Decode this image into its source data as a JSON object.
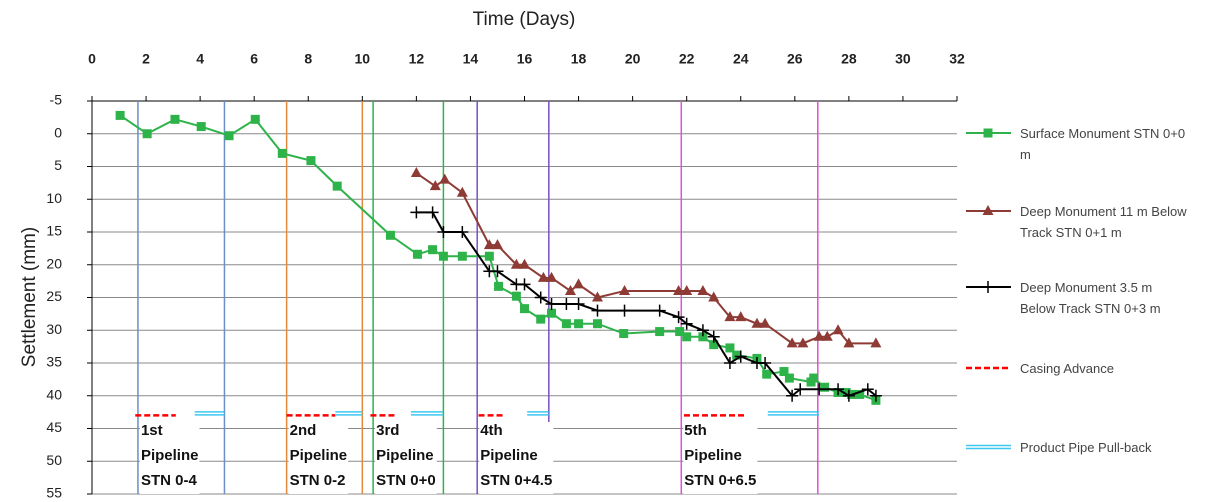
{
  "chart_data": {
    "type": "line",
    "title": "Time (Days)",
    "y_label": "Settlement (mm)",
    "xlim": [
      0,
      32
    ],
    "xticks": [
      0,
      2,
      4,
      6,
      8,
      10,
      12,
      14,
      16,
      18,
      20,
      22,
      24,
      26,
      28,
      30,
      32
    ],
    "ylim": [
      -5,
      55
    ],
    "y_inverted": true,
    "yticks": [
      -5,
      0,
      5,
      10,
      15,
      20,
      25,
      30,
      35,
      40,
      45,
      50,
      55
    ],
    "grid": true,
    "series": [
      {
        "name": "Surface Monument STN 0+0 m",
        "color": "#2db34a",
        "marker": "square",
        "x": [
          1.04,
          2.04,
          3.07,
          4.04,
          5.07,
          6.04,
          7.04,
          8.1,
          9.07,
          11.04,
          12.04,
          12.6,
          13.0,
          13.7,
          14.7,
          15.04,
          15.7,
          16.0,
          16.6,
          17.0,
          17.55,
          18.0,
          18.7,
          19.67,
          21.0,
          21.74,
          22.0,
          22.6,
          23.0,
          23.6,
          23.85,
          24.6,
          24.96,
          25.6,
          25.8,
          26.6,
          26.7,
          27.1,
          27.6,
          27.9,
          28.1,
          28.4,
          29.0
        ],
        "values": [
          -2.8,
          0,
          -2.2,
          -1.1,
          0.3,
          -2.2,
          3,
          4.1,
          8,
          15.5,
          18.4,
          17.7,
          18.7,
          18.7,
          18.7,
          23.3,
          24.8,
          26.7,
          28.3,
          27.4,
          29,
          29,
          29,
          30.5,
          30.2,
          30.2,
          31,
          31,
          32.2,
          32.7,
          33.8,
          34.3,
          36.7,
          36.3,
          37.3,
          37.9,
          37.3,
          38.7,
          39.5,
          39.5,
          39.8,
          39.8,
          40.7
        ]
      },
      {
        "name": "Deep Monument 11 m Below Track STN 0+1 m",
        "color": "#8e3b36",
        "marker": "triangle",
        "x": [
          12,
          12.7,
          13.05,
          13.7,
          14.7,
          15,
          15.7,
          16,
          16.7,
          17,
          17.7,
          18,
          18.7,
          19.7,
          21.7,
          22,
          22.6,
          23,
          23.6,
          24,
          24.6,
          24.9,
          25.9,
          26.3,
          26.9,
          27.2,
          27.6,
          28,
          29
        ],
        "values": [
          6,
          8,
          7,
          9,
          17,
          17,
          20,
          20,
          22,
          22,
          24,
          23,
          25,
          24,
          24,
          24,
          24,
          25,
          28,
          28,
          29,
          29,
          32,
          32,
          31,
          31,
          30,
          32,
          32
        ]
      },
      {
        "name": "Deep Monument 3.5 m Below Track STN 0+3 m",
        "color": "#000000",
        "marker": "plus",
        "x": [
          12,
          12.6,
          13,
          13.7,
          14.7,
          15,
          15.7,
          16,
          16.6,
          17,
          17.55,
          18,
          18.7,
          19.7,
          21,
          21.7,
          22,
          22.6,
          23,
          23.6,
          24,
          24.6,
          24.9,
          25.9,
          26.2,
          26.9,
          27.6,
          28,
          28.7,
          29
        ],
        "values": [
          12,
          12,
          15,
          15,
          21,
          21,
          23,
          23,
          25,
          26,
          26,
          26,
          27,
          27,
          27,
          28,
          29,
          30,
          31,
          35,
          34,
          35,
          35,
          40,
          39,
          39,
          39,
          40,
          39,
          40
        ]
      }
    ],
    "casing_name": "Casing Advance",
    "casing_color": "#ff0000",
    "casing_y": 43,
    "pullback_name": "Product Pipe Pull-back",
    "pullback_color": "#3cc8f0",
    "pullback_y": 42.7,
    "pipelines": [
      {
        "label_lines": [
          "1st",
          "Pipeline",
          "STN 0-4"
        ],
        "color": "#6b8fc7",
        "start": 1.7,
        "end": 4.9,
        "casing": [
          1.6,
          3.1
        ],
        "pullback": [
          3.8,
          4.9
        ]
      },
      {
        "label_lines": [
          "2nd",
          "Pipeline",
          "STN 0-2"
        ],
        "color": "#e58a3c",
        "start": 7.2,
        "end": 10.0,
        "casing": [
          7.2,
          9.0
        ],
        "pullback": [
          9.0,
          10.0
        ]
      },
      {
        "label_lines": [
          "3rd",
          "Pipeline",
          "STN 0+0"
        ],
        "color": "#2db34a",
        "start": 10.4,
        "end": 13.0,
        "casing": [
          10.3,
          11.2
        ],
        "pullback": [
          11.8,
          13.0
        ]
      },
      {
        "label_lines": [
          "4th",
          "Pipeline",
          "STN 0+4.5"
        ],
        "color": "#7b4fc4",
        "start": 14.25,
        "end": 16.9,
        "casing": [
          14.3,
          15.3
        ],
        "pullback": [
          16.1,
          16.9
        ]
      },
      {
        "label_lines": [
          "5th",
          "Pipeline",
          "STN 0+6.5"
        ],
        "color": "#e050d8",
        "start": 21.8,
        "end": 26.85,
        "casing": [
          21.9,
          24.2
        ],
        "pullback": [
          25.0,
          26.9
        ]
      }
    ]
  }
}
